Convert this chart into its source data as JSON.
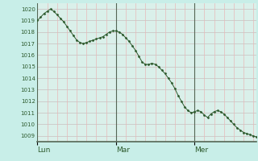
{
  "background_color": "#c8eee8",
  "plot_bg_color": "#daf0ea",
  "grid_color_h": "#c8bebe",
  "grid_color_v": "#e8b8b8",
  "grid_color_day": "#556655",
  "line_color": "#2d5a2d",
  "marker_color": "#2d5a2d",
  "ylim": [
    1008.5,
    1020.5
  ],
  "yticks": [
    1009,
    1010,
    1011,
    1012,
    1013,
    1014,
    1015,
    1016,
    1017,
    1018,
    1019,
    1020
  ],
  "day_labels": [
    "Lun",
    "Mar",
    "Mer"
  ],
  "day_positions": [
    0,
    24,
    48
  ],
  "tick_color": "#2d5a2d",
  "pressure_values": [
    1019.0,
    1019.3,
    1019.6,
    1019.8,
    1020.0,
    1019.8,
    1019.5,
    1019.2,
    1018.9,
    1018.5,
    1018.1,
    1017.7,
    1017.3,
    1017.1,
    1017.0,
    1017.1,
    1017.2,
    1017.3,
    1017.4,
    1017.5,
    1017.6,
    1017.8,
    1018.0,
    1018.1,
    1018.1,
    1018.0,
    1017.8,
    1017.5,
    1017.2,
    1016.8,
    1016.4,
    1015.9,
    1015.4,
    1015.2,
    1015.2,
    1015.3,
    1015.2,
    1015.0,
    1014.7,
    1014.4,
    1014.0,
    1013.6,
    1013.1,
    1012.5,
    1012.0,
    1011.5,
    1011.2,
    1011.0,
    1011.1,
    1011.2,
    1011.1,
    1010.8,
    1010.6,
    1010.9,
    1011.1,
    1011.2,
    1011.1,
    1010.9,
    1010.6,
    1010.3,
    1010.0,
    1009.7,
    1009.5,
    1009.3,
    1009.2,
    1009.1,
    1009.0,
    1008.9
  ],
  "n_points": 68,
  "fig_width": 3.2,
  "fig_height": 2.0,
  "fig_dpi": 100
}
